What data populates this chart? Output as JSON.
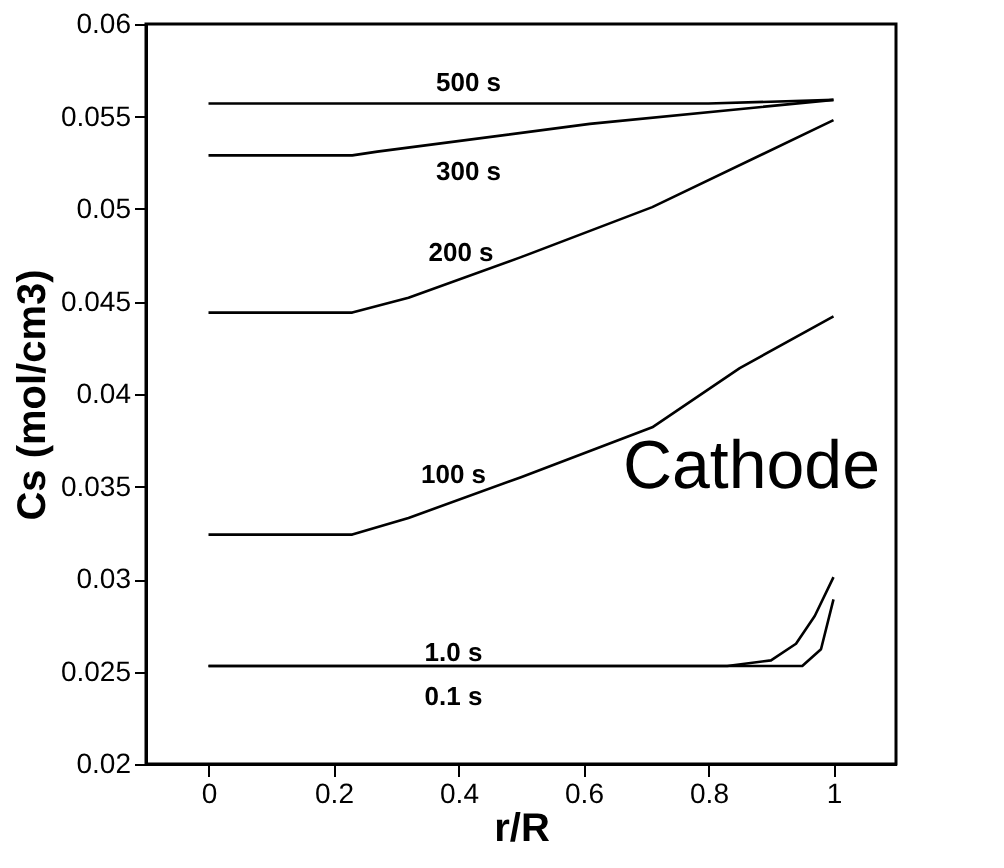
{
  "chart_data": {
    "type": "line",
    "xlabel": "r/R",
    "ylabel": "Cs (mol/cm3)",
    "xlim": [
      -0.1,
      1.1
    ],
    "ylim": [
      0.02,
      0.06
    ],
    "xticks": [
      0,
      0.2,
      0.4,
      0.6,
      0.8,
      1
    ],
    "yticks": [
      0.02,
      0.025,
      0.03,
      0.035,
      0.04,
      0.045,
      0.05,
      0.055,
      0.06
    ],
    "grid": false,
    "legend": false,
    "marker": "none",
    "line_style": "solid",
    "series": [
      {
        "color": "#000000",
        "x": [
          0,
          0.8,
          1
        ],
        "values": [
          0.0557,
          0.0557,
          0.0559
        ]
      },
      {
        "color": "#000000",
        "x": [
          0,
          0.23,
          0.27,
          0.61,
          1
        ],
        "values": [
          0.0529,
          0.0529,
          0.0531,
          0.0546,
          0.0559
        ]
      },
      {
        "color": "#000000",
        "x": [
          0,
          0.23,
          0.32,
          0.5,
          0.71,
          1
        ],
        "values": [
          0.0444,
          0.0444,
          0.0452,
          0.0474,
          0.0501,
          0.0548
        ]
      },
      {
        "color": "#000000",
        "x": [
          0,
          0.23,
          0.32,
          0.5,
          0.71,
          0.85,
          1
        ],
        "values": [
          0.0324,
          0.0324,
          0.0333,
          0.0355,
          0.0382,
          0.0414,
          0.0442
        ]
      },
      {
        "color": "#000000",
        "x": [
          0,
          0.83,
          0.9,
          0.94,
          0.97,
          1
        ],
        "values": [
          0.0253,
          0.0253,
          0.0256,
          0.0265,
          0.028,
          0.0301
        ]
      },
      {
        "color": "#000000",
        "x": [
          0,
          0.95,
          0.98,
          1
        ],
        "values": [
          0.0253,
          0.0253,
          0.0262,
          0.0289
        ]
      }
    ],
    "annotations": [
      "500 s",
      "300 s",
      "200 s",
      "100 s",
      "1.0 s",
      "0.1 s",
      "Cathode"
    ]
  }
}
